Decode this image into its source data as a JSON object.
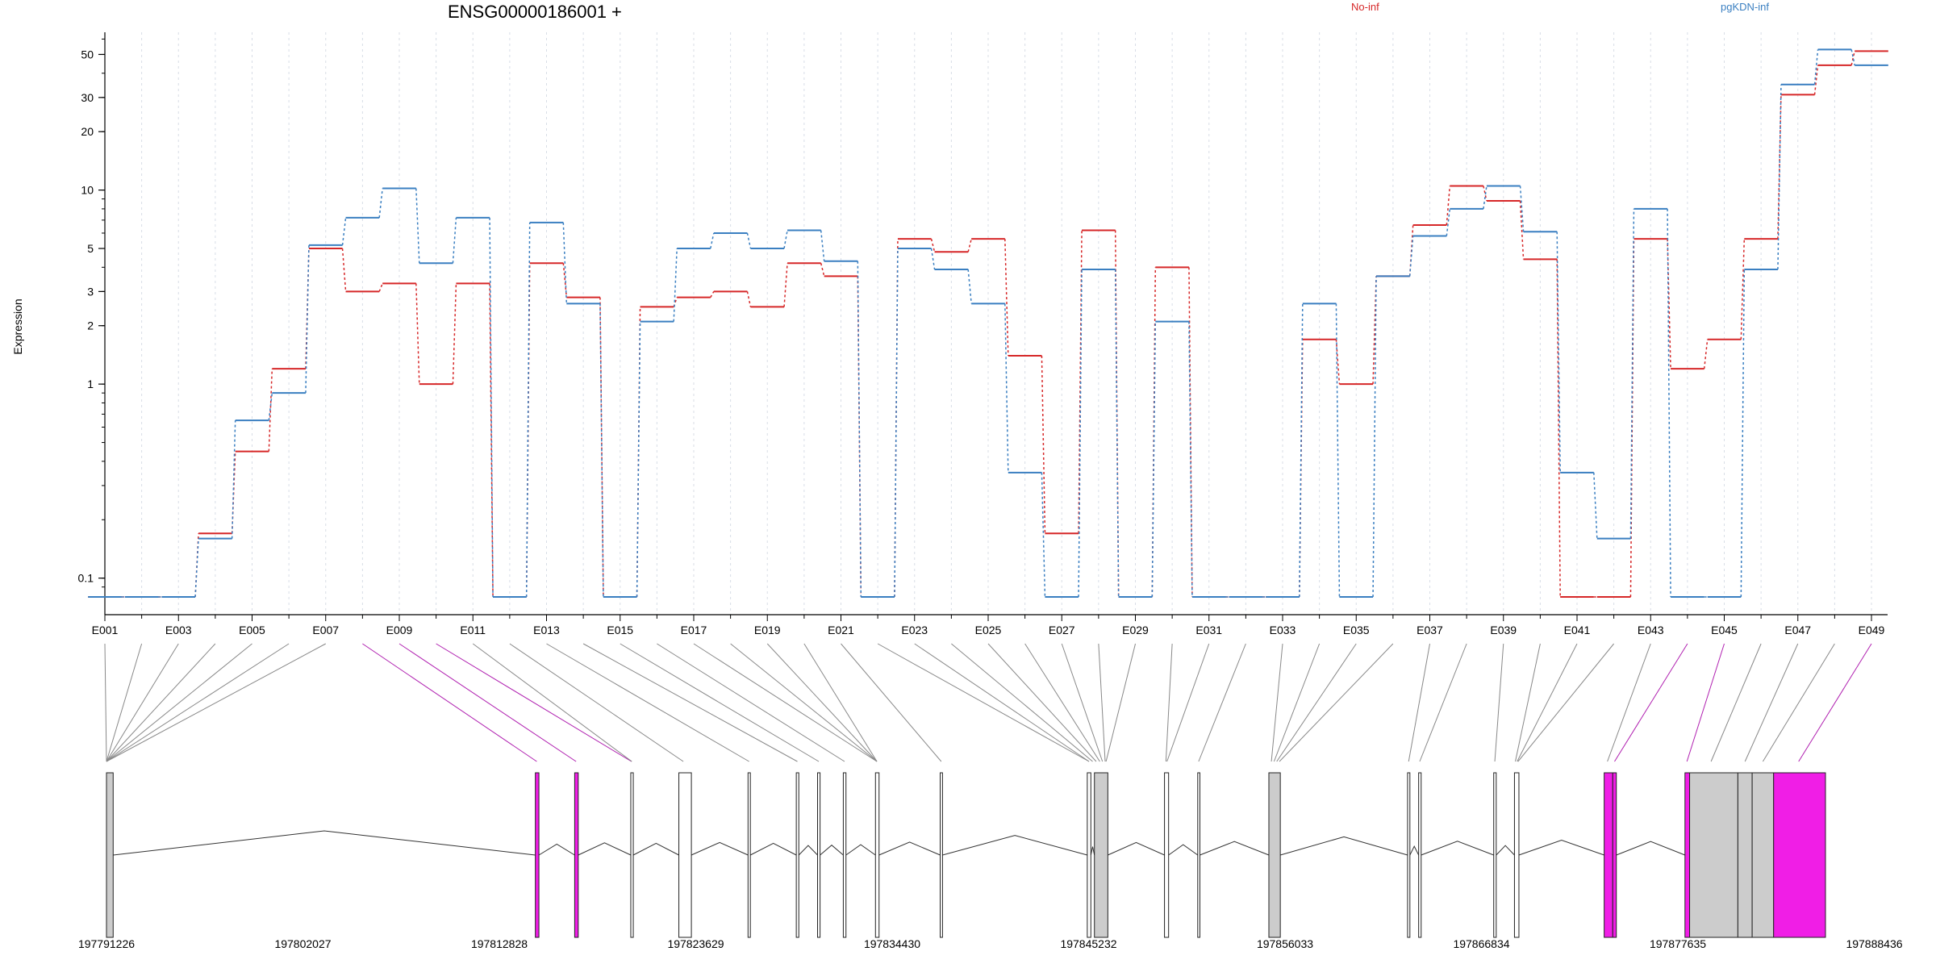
{
  "title": "ENSG00000186001 +",
  "ylabel": "Expression",
  "legend": [
    {
      "name": "No-inf",
      "color": "#d62728"
    },
    {
      "name": "pgKDN-inf",
      "color": "#3a7fc1"
    }
  ],
  "chart_data": {
    "type": "line",
    "scale": "log",
    "ylim": [
      0.08,
      62
    ],
    "yticks": [
      0.1,
      1,
      2,
      3,
      5,
      10,
      20,
      30,
      50
    ],
    "ytick_labels": [
      "0.1",
      "1",
      "2",
      "3",
      "5",
      "10",
      "20",
      "30",
      "50"
    ],
    "x_labels": [
      "E001",
      "E003",
      "E005",
      "E007",
      "E009",
      "E011",
      "E013",
      "E015",
      "E017",
      "E019",
      "E021",
      "E023",
      "E025",
      "E027",
      "E029",
      "E031",
      "E033",
      "E035",
      "E037",
      "E039",
      "E041",
      "E043",
      "E045",
      "E047",
      "E049"
    ],
    "categories": [
      "E001",
      "E002",
      "E003",
      "E004",
      "E005",
      "E006",
      "E007",
      "E008",
      "E009",
      "E010",
      "E011",
      "E012",
      "E013",
      "E014",
      "E015",
      "E016",
      "E017",
      "E018",
      "E019",
      "E020",
      "E021",
      "E022",
      "E023",
      "E024",
      "E025",
      "E026",
      "E027",
      "E028",
      "E029",
      "E030",
      "E031",
      "E032",
      "E033",
      "E034",
      "E035",
      "E036",
      "E037",
      "E038",
      "E039",
      "E040",
      "E041",
      "E042",
      "E043",
      "E044",
      "E045",
      "E046",
      "E047",
      "E048",
      "E049"
    ],
    "series": [
      {
        "name": "No-inf",
        "color": "#d62728",
        "values": [
          0.08,
          0.08,
          0.08,
          0.17,
          0.45,
          1.2,
          5.0,
          3.0,
          3.3,
          1.0,
          3.3,
          0.08,
          4.2,
          2.8,
          0.08,
          2.5,
          2.8,
          3.0,
          2.5,
          4.2,
          3.6,
          0.08,
          5.6,
          4.8,
          5.6,
          1.4,
          0.17,
          6.2,
          0.08,
          4.0,
          0.08,
          0.08,
          0.08,
          1.7,
          1.0,
          3.6,
          6.6,
          10.5,
          8.8,
          4.4,
          0.08,
          0.08,
          5.6,
          1.2,
          1.7,
          5.6,
          31,
          44,
          52
        ]
      },
      {
        "name": "pgKDN-inf",
        "color": "#3a7fc1",
        "values": [
          0.08,
          0.08,
          0.08,
          0.16,
          0.65,
          0.9,
          5.2,
          7.2,
          10.2,
          4.2,
          7.2,
          0.08,
          6.8,
          2.6,
          0.08,
          2.1,
          5.0,
          6.0,
          5.0,
          6.2,
          4.3,
          0.08,
          5.0,
          3.9,
          2.6,
          0.35,
          0.08,
          3.9,
          0.08,
          2.1,
          0.08,
          0.08,
          0.08,
          2.6,
          0.08,
          3.6,
          5.8,
          8.0,
          10.5,
          6.1,
          0.35,
          0.16,
          8.0,
          0.08,
          0.08,
          3.9,
          35,
          53,
          44
        ]
      }
    ]
  },
  "gene_model": {
    "coord_start": 197791226,
    "coord_end": 197890200,
    "coord_labels": [
      "197791226",
      "197802027",
      "197812828",
      "197823629",
      "197834430",
      "197845232",
      "197856033",
      "197866834",
      "197877635",
      "197888436"
    ],
    "exons": [
      {
        "start": 197791226,
        "end": 197791600,
        "style": "gray"
      },
      {
        "start": 197815220,
        "end": 197815420,
        "style": "magenta"
      },
      {
        "start": 197817420,
        "end": 197817620,
        "style": "magenta"
      },
      {
        "start": 197820560,
        "end": 197820700,
        "style": "white"
      },
      {
        "start": 197823250,
        "end": 197823950,
        "style": "white"
      },
      {
        "start": 197827120,
        "end": 197827250,
        "style": "white"
      },
      {
        "start": 197829820,
        "end": 197829960,
        "style": "white"
      },
      {
        "start": 197831010,
        "end": 197831150,
        "style": "white"
      },
      {
        "start": 197832450,
        "end": 197832600,
        "style": "white"
      },
      {
        "start": 197834250,
        "end": 197834450,
        "style": "white"
      },
      {
        "start": 197837870,
        "end": 197838000,
        "style": "white"
      },
      {
        "start": 197846100,
        "end": 197846300,
        "style": "white"
      },
      {
        "start": 197846500,
        "end": 197847250,
        "style": "gray"
      },
      {
        "start": 197850420,
        "end": 197850650,
        "style": "white"
      },
      {
        "start": 197852280,
        "end": 197852400,
        "style": "white"
      },
      {
        "start": 197856260,
        "end": 197856900,
        "style": "gray"
      },
      {
        "start": 197864020,
        "end": 197864150,
        "style": "white"
      },
      {
        "start": 197864640,
        "end": 197864780,
        "style": "white"
      },
      {
        "start": 197868840,
        "end": 197868980,
        "style": "white"
      },
      {
        "start": 197870000,
        "end": 197870250,
        "style": "white"
      },
      {
        "start": 197875020,
        "end": 197875500,
        "style": "magenta"
      },
      {
        "start": 197875500,
        "end": 197875700,
        "style": "magenta"
      },
      {
        "start": 197879540,
        "end": 197879800,
        "style": "magenta"
      },
      {
        "start": 197879800,
        "end": 197882500,
        "style": "gray"
      },
      {
        "start": 197882500,
        "end": 197883300,
        "style": "gray"
      },
      {
        "start": 197883300,
        "end": 197884500,
        "style": "gray"
      },
      {
        "start": 197884500,
        "end": 197887400,
        "style": "magenta"
      }
    ],
    "mapping": [
      {
        "exon": 1,
        "pos": 197791226,
        "magenta": false
      },
      {
        "exon": 2,
        "pos": 197791226,
        "magenta": false
      },
      {
        "exon": 3,
        "pos": 197791226,
        "magenta": false
      },
      {
        "exon": 4,
        "pos": 197791226,
        "magenta": false
      },
      {
        "exon": 5,
        "pos": 197791226,
        "magenta": false
      },
      {
        "exon": 6,
        "pos": 197791226,
        "magenta": false
      },
      {
        "exon": 7,
        "pos": 197791226,
        "magenta": false
      },
      {
        "exon": 8,
        "pos": 197815300,
        "magenta": true
      },
      {
        "exon": 9,
        "pos": 197817500,
        "magenta": true
      },
      {
        "exon": 10,
        "pos": 197820600,
        "magenta": true
      },
      {
        "exon": 11,
        "pos": 197820620,
        "magenta": false
      },
      {
        "exon": 12,
        "pos": 197823500,
        "magenta": false
      },
      {
        "exon": 13,
        "pos": 197827180,
        "magenta": false
      },
      {
        "exon": 14,
        "pos": 197829880,
        "magenta": false
      },
      {
        "exon": 15,
        "pos": 197831080,
        "magenta": false
      },
      {
        "exon": 16,
        "pos": 197832520,
        "magenta": false
      },
      {
        "exon": 17,
        "pos": 197834330,
        "magenta": false
      },
      {
        "exon": 18,
        "pos": 197834330,
        "magenta": false
      },
      {
        "exon": 19,
        "pos": 197834330,
        "magenta": false
      },
      {
        "exon": 20,
        "pos": 197834330,
        "magenta": false
      },
      {
        "exon": 21,
        "pos": 197837930,
        "magenta": false
      },
      {
        "exon": 22,
        "pos": 197846200,
        "magenta": false
      },
      {
        "exon": 23,
        "pos": 197846200,
        "magenta": false
      },
      {
        "exon": 24,
        "pos": 197846400,
        "magenta": false
      },
      {
        "exon": 25,
        "pos": 197846600,
        "magenta": false
      },
      {
        "exon": 26,
        "pos": 197846800,
        "magenta": false
      },
      {
        "exon": 27,
        "pos": 197846950,
        "magenta": false
      },
      {
        "exon": 28,
        "pos": 197847100,
        "magenta": false
      },
      {
        "exon": 29,
        "pos": 197847150,
        "magenta": false
      },
      {
        "exon": 30,
        "pos": 197850500,
        "magenta": false
      },
      {
        "exon": 31,
        "pos": 197850560,
        "magenta": false
      },
      {
        "exon": 32,
        "pos": 197852330,
        "magenta": false
      },
      {
        "exon": 33,
        "pos": 197856400,
        "magenta": false
      },
      {
        "exon": 34,
        "pos": 197856550,
        "magenta": false
      },
      {
        "exon": 35,
        "pos": 197856700,
        "magenta": false
      },
      {
        "exon": 36,
        "pos": 197856850,
        "magenta": false
      },
      {
        "exon": 37,
        "pos": 197864080,
        "magenta": false
      },
      {
        "exon": 38,
        "pos": 197864700,
        "magenta": false
      },
      {
        "exon": 39,
        "pos": 197868900,
        "magenta": false
      },
      {
        "exon": 40,
        "pos": 197870050,
        "magenta": false
      },
      {
        "exon": 41,
        "pos": 197870150,
        "magenta": false
      },
      {
        "exon": 42,
        "pos": 197870200,
        "magenta": false
      },
      {
        "exon": 43,
        "pos": 197875200,
        "magenta": false
      },
      {
        "exon": 44,
        "pos": 197875600,
        "magenta": true
      },
      {
        "exon": 45,
        "pos": 197879650,
        "magenta": true
      },
      {
        "exon": 46,
        "pos": 197881000,
        "magenta": false
      },
      {
        "exon": 47,
        "pos": 197882900,
        "magenta": false
      },
      {
        "exon": 48,
        "pos": 197883900,
        "magenta": false
      },
      {
        "exon": 49,
        "pos": 197885900,
        "magenta": true
      }
    ]
  }
}
